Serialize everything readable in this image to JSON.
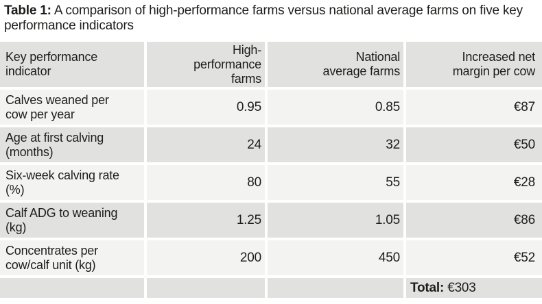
{
  "title": {
    "label": "Table 1:",
    "text": "A comparison of high-performance farms versus national average farms on five key performance indicators"
  },
  "table": {
    "columns": [
      {
        "label": "Key performance\nindicator"
      },
      {
        "label": "High-\nperformance\nfarms"
      },
      {
        "label": "National\naverage farms"
      },
      {
        "label": "Increased net\nmargin per cow"
      }
    ],
    "rows": [
      {
        "indicator": "Calves weaned per\ncow per year",
        "high_performance": "0.95",
        "national_average": "0.85",
        "increased_margin": "€87"
      },
      {
        "indicator": "Age at first calving\n(months)",
        "high_performance": "24",
        "national_average": "32",
        "increased_margin": "€50"
      },
      {
        "indicator": "Six-week calving rate\n(%)",
        "high_performance": "80",
        "national_average": "55",
        "increased_margin": "€28"
      },
      {
        "indicator": "Calf ADG to weaning\n(kg)",
        "high_performance": "1.25",
        "national_average": "1.05",
        "increased_margin": "€86"
      },
      {
        "indicator": "Concentrates per\ncow/calf unit (kg)",
        "high_performance": "200",
        "national_average": "450",
        "increased_margin": "€52"
      }
    ],
    "footer": {
      "total_label": "Total:",
      "total_value": "€303"
    }
  },
  "colors": {
    "row_dark_bg": "#e1e1e0",
    "row_light_bg": "#f3f3f1",
    "text": "#1d1d1b",
    "background": "#ffffff"
  }
}
